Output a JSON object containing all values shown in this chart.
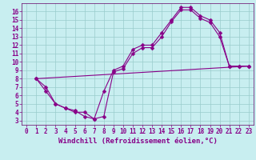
{
  "xlabel": "Windchill (Refroidissement éolien,°C)",
  "bg_color": "#c8eef0",
  "line_color": "#880088",
  "grid_color": "#99cccc",
  "spine_color": "#660066",
  "xlim": [
    -0.5,
    23.5
  ],
  "ylim": [
    2.5,
    17
  ],
  "xticks": [
    0,
    1,
    2,
    3,
    4,
    5,
    6,
    7,
    8,
    9,
    10,
    11,
    12,
    13,
    14,
    15,
    16,
    17,
    18,
    19,
    20,
    21,
    22,
    23
  ],
  "yticks": [
    3,
    4,
    5,
    6,
    7,
    8,
    9,
    10,
    11,
    12,
    13,
    14,
    15,
    16
  ],
  "line1_x": [
    1,
    2,
    3,
    4,
    5,
    6,
    7,
    8,
    9,
    10,
    11,
    12,
    13,
    14,
    15,
    16,
    17,
    18,
    19,
    20,
    21,
    22,
    23
  ],
  "line1_y": [
    8.0,
    7.0,
    5.0,
    4.5,
    4.2,
    3.5,
    3.2,
    6.5,
    9.0,
    9.5,
    11.5,
    12.0,
    12.0,
    13.5,
    15.0,
    16.5,
    16.5,
    15.5,
    15.0,
    13.5,
    9.5,
    9.5,
    9.5
  ],
  "line2_x": [
    1,
    2,
    3,
    4,
    5,
    6,
    7,
    8,
    9,
    10,
    11,
    12,
    13,
    14,
    15,
    16,
    17,
    18,
    19,
    20,
    21,
    22,
    23
  ],
  "line2_y": [
    8.0,
    6.5,
    5.0,
    4.5,
    4.0,
    4.0,
    3.2,
    3.5,
    8.8,
    9.2,
    11.0,
    11.7,
    11.7,
    13.0,
    14.8,
    16.2,
    16.2,
    15.2,
    14.7,
    13.0,
    9.5,
    9.5,
    9.5
  ],
  "line3_x": [
    1,
    23
  ],
  "line3_y": [
    8.0,
    9.5
  ],
  "font_size_label": 6.5,
  "font_size_tick": 5.5,
  "marker_size": 2.5,
  "line_width": 0.8
}
